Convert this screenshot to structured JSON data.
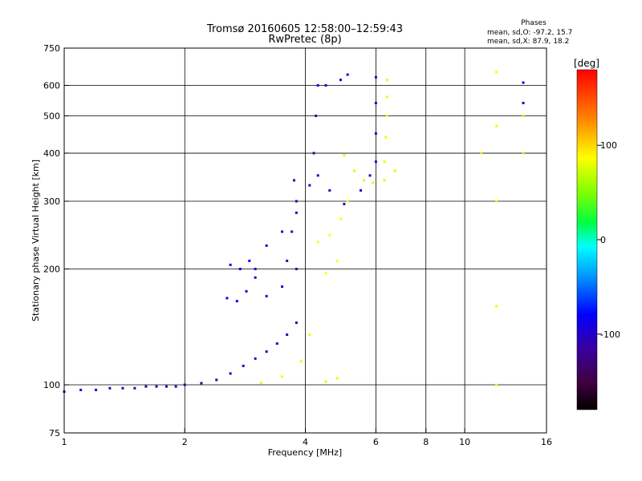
{
  "chart_data": {
    "type": "scatter",
    "title_line1": "Tromsø 20160605 12:58:00–12:59:43",
    "title_line2": "RwPretec (8p)",
    "xlabel": "Frequency [MHz]",
    "ylabel": "Stationary phase Virtual Height [km]",
    "x_scale": "log",
    "y_scale": "log",
    "xlim": [
      1,
      16
    ],
    "ylim": [
      75,
      750
    ],
    "x_ticks": [
      1,
      2,
      4,
      6,
      8,
      10,
      16
    ],
    "x_tick_labels": [
      "1",
      "2",
      "4",
      "6",
      "8",
      "10",
      "16"
    ],
    "y_ticks": [
      75,
      100,
      200,
      300,
      400,
      500,
      600,
      750
    ],
    "y_tick_labels": [
      "75",
      "100",
      "200",
      "300",
      "400",
      "500",
      "600",
      "750"
    ],
    "grid_x": [
      2,
      4,
      6,
      8,
      10
    ],
    "grid_y": [
      100,
      200,
      300,
      400,
      500,
      600
    ],
    "grid": true,
    "stats": {
      "heading": "Phases",
      "line_o": "mean, sd,O: -97.2, 15.7",
      "line_x": "mean, sd,X:  87.9, 18.2"
    },
    "colorbar": {
      "label": "[deg]",
      "min": -180,
      "max": 180,
      "ticks": [
        100,
        0,
        -100
      ],
      "tick_labels": [
        "100",
        "0",
        "-100"
      ]
    },
    "traces": [
      {
        "phase": -105,
        "points": [
          [
            1.0,
            96
          ],
          [
            1.1,
            97
          ],
          [
            1.2,
            97
          ],
          [
            1.3,
            98
          ],
          [
            1.4,
            98
          ],
          [
            1.5,
            98
          ],
          [
            1.6,
            99
          ],
          [
            1.7,
            99
          ],
          [
            1.8,
            99
          ],
          [
            1.9,
            99
          ],
          [
            2.0,
            100
          ],
          [
            2.2,
            101
          ],
          [
            2.4,
            103
          ],
          [
            2.6,
            107
          ],
          [
            2.8,
            112
          ],
          [
            3.0,
            117
          ],
          [
            3.2,
            122
          ],
          [
            3.4,
            128
          ],
          [
            3.6,
            135
          ],
          [
            3.8,
            145
          ]
        ]
      },
      {
        "phase": -95,
        "points": [
          [
            2.55,
            168
          ],
          [
            2.7,
            165
          ],
          [
            2.85,
            175
          ],
          [
            3.0,
            190
          ]
        ]
      },
      {
        "phase": -80,
        "points": [
          [
            2.6,
            205
          ],
          [
            2.75,
            200
          ],
          [
            2.9,
            210
          ]
        ]
      },
      {
        "phase": -100,
        "points": [
          [
            3.0,
            200
          ],
          [
            3.2,
            170
          ],
          [
            3.5,
            180
          ],
          [
            3.8,
            200
          ],
          [
            3.2,
            230
          ],
          [
            3.5,
            250
          ],
          [
            3.8,
            280
          ]
        ]
      },
      {
        "phase": -105,
        "points": [
          [
            3.6,
            210
          ],
          [
            3.7,
            250
          ],
          [
            3.8,
            300
          ],
          [
            3.75,
            340
          ]
        ]
      },
      {
        "phase": -105,
        "points": [
          [
            4.1,
            330
          ],
          [
            4.2,
            400
          ],
          [
            4.25,
            500
          ],
          [
            4.3,
            600
          ]
        ]
      },
      {
        "phase": -100,
        "points": [
          [
            4.3,
            350
          ],
          [
            4.6,
            320
          ],
          [
            5.0,
            295
          ],
          [
            5.5,
            320
          ],
          [
            5.8,
            350
          ],
          [
            6.0,
            380
          ],
          [
            6.0,
            450
          ],
          [
            6.0,
            540
          ],
          [
            6.0,
            630
          ]
        ]
      },
      {
        "phase": -95,
        "points": [
          [
            4.5,
            600
          ],
          [
            4.9,
            620
          ],
          [
            5.1,
            640
          ]
        ]
      },
      {
        "phase": 75,
        "points": [
          [
            5.0,
            395
          ],
          [
            5.3,
            360
          ],
          [
            5.6,
            340
          ],
          [
            5.9,
            335
          ],
          [
            6.3,
            340
          ],
          [
            6.7,
            360
          ]
        ]
      },
      {
        "phase": 80,
        "points": [
          [
            6.3,
            380
          ],
          [
            6.35,
            440
          ],
          [
            6.4,
            500
          ],
          [
            6.4,
            560
          ],
          [
            6.4,
            620
          ]
        ]
      },
      {
        "phase": 85,
        "points": [
          [
            4.3,
            235
          ],
          [
            4.6,
            245
          ],
          [
            4.9,
            270
          ],
          [
            5.1,
            300
          ]
        ]
      },
      {
        "phase": 80,
        "points": [
          [
            3.1,
            101
          ],
          [
            3.5,
            105
          ],
          [
            3.9,
            115
          ],
          [
            4.1,
            135
          ]
        ]
      },
      {
        "phase": 90,
        "points": [
          [
            4.5,
            102
          ],
          [
            4.8,
            104
          ]
        ]
      },
      {
        "phase": 85,
        "points": [
          [
            4.5,
            195
          ],
          [
            4.8,
            210
          ]
        ]
      },
      {
        "phase": 90,
        "points": [
          [
            12.0,
            650
          ],
          [
            12.0,
            470
          ],
          [
            12.0,
            300
          ],
          [
            12.0,
            160
          ],
          [
            12.0,
            100
          ]
        ]
      },
      {
        "phase": 95,
        "points": [
          [
            14.0,
            500
          ],
          [
            14.0,
            400
          ],
          [
            11.0,
            400
          ]
        ]
      },
      {
        "phase": -95,
        "points": [
          [
            14.0,
            610
          ],
          [
            14.0,
            540
          ]
        ]
      }
    ]
  }
}
